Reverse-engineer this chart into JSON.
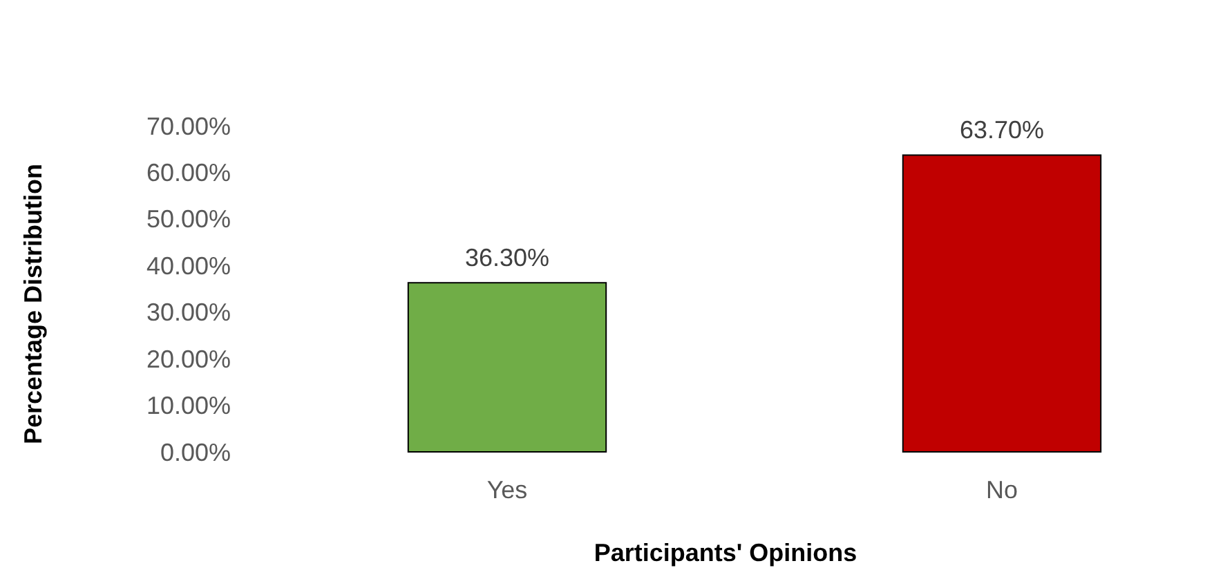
{
  "chart_data": {
    "type": "bar",
    "xlabel": "Participants' Opinions",
    "ylabel": "Percentage Distribution",
    "categories": [
      "Yes",
      "No"
    ],
    "values": [
      36.3,
      63.7
    ],
    "colors": [
      "#70ad47",
      "#c00000"
    ],
    "value_labels": [
      "36.30%",
      "63.70%"
    ],
    "ylim": [
      0,
      70
    ],
    "yticks": [
      {
        "value": 0,
        "label": "0.00%"
      },
      {
        "value": 10,
        "label": "10.00%"
      },
      {
        "value": 20,
        "label": "20.00%"
      },
      {
        "value": 30,
        "label": "30.00%"
      },
      {
        "value": 40,
        "label": "40.00%"
      },
      {
        "value": 50,
        "label": "50.00%"
      },
      {
        "value": 60,
        "label": "60.00%"
      },
      {
        "value": 70,
        "label": "70.00%"
      }
    ],
    "grid": false
  }
}
